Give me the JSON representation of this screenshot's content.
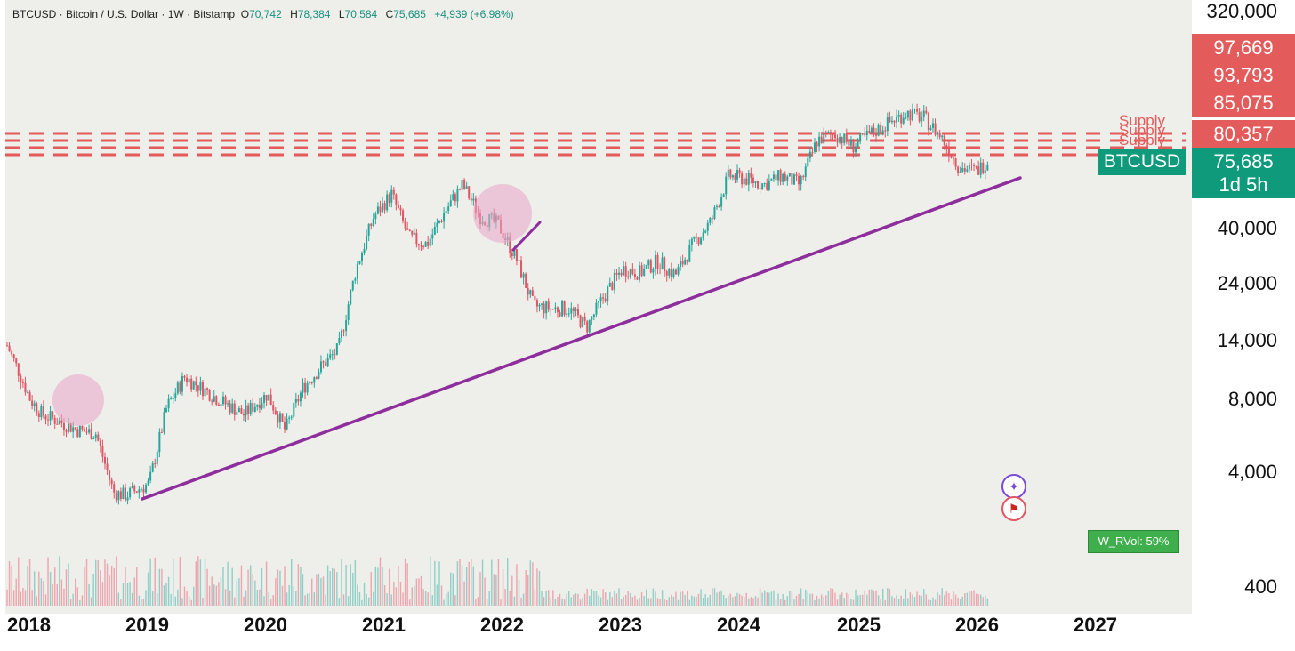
{
  "header": {
    "symbol_line": "BTCUSD · Bitcoin / U.S. Dollar · 1W · Bitstamp",
    "ohlc": [
      {
        "k": "O",
        "v": "70,742"
      },
      {
        "k": "H",
        "v": "78,384"
      },
      {
        "k": "L",
        "v": "70,584"
      },
      {
        "k": "C",
        "v": "75,685"
      }
    ],
    "change": "+4,939 (+6.98%)"
  },
  "price_axis": {
    "labels": [
      "320,000",
      "40,000",
      "24,000",
      "14,000",
      "8,000",
      "4,000",
      "400"
    ]
  },
  "supply_tags": [
    "97,669",
    "93,793",
    "85,075",
    "80,357"
  ],
  "supply_label": "Supply",
  "current": {
    "ticker": "BTCUSD",
    "price": "75,685",
    "countdown": "1d 5h"
  },
  "time_axis": {
    "years": [
      "2018",
      "2019",
      "2020",
      "2021",
      "2022",
      "2023",
      "2024",
      "2025",
      "2026",
      "2027"
    ]
  },
  "indicator": {
    "rvol_label": "W_RVol: 59%"
  },
  "icons": [
    "sparkle-icon",
    "us-flag-icon"
  ],
  "colors": {
    "up": "#26a69a",
    "down": "#e05563",
    "supply": "#e45b5b",
    "trendline": "#8e2d9c",
    "accent_green": "#0f9b7b"
  },
  "chart_data": {
    "type": "candlestick",
    "title": "BTCUSD · Bitcoin / U.S. Dollar · 1W · Bitstamp",
    "y_scale": "log",
    "ylim": [
      2500,
      320000
    ],
    "x_range": [
      "2018",
      "2027"
    ],
    "series": [
      {
        "name": "BTCUSD",
        "x": [
          2018.0,
          2018.1,
          2018.2,
          2018.3,
          2018.45,
          2018.6,
          2018.75,
          2018.9,
          2019.0,
          2019.2,
          2019.35,
          2019.5,
          2019.65,
          2019.8,
          2020.0,
          2020.2,
          2020.35,
          2020.5,
          2020.65,
          2020.8,
          2020.95,
          2021.1,
          2021.25,
          2021.4,
          2021.55,
          2021.7,
          2021.85,
          2022.0,
          2022.15,
          2022.3,
          2022.45,
          2022.6,
          2022.75,
          2022.9,
          2023.05,
          2023.2,
          2023.35,
          2023.5,
          2023.65,
          2023.8,
          2023.95,
          2024.1,
          2024.25,
          2024.4,
          2024.55,
          2024.7,
          2024.85,
          2025.0,
          2025.15,
          2025.3,
          2025.45,
          2025.6,
          2025.75,
          2025.9,
          2026.05,
          2026.2,
          2026.3
        ],
        "y": [
          14000,
          11000,
          8500,
          7500,
          7000,
          6500,
          6300,
          3700,
          3600,
          4000,
          8000,
          10500,
          9500,
          8500,
          7500,
          9000,
          6500,
          9500,
          11500,
          13500,
          28000,
          45000,
          55000,
          37000,
          35000,
          47000,
          60000,
          45000,
          42000,
          31000,
          20000,
          19500,
          19500,
          16500,
          22000,
          28000,
          27000,
          30000,
          26500,
          35000,
          43000,
          65000,
          63000,
          60000,
          65000,
          60000,
          90000,
          95000,
          85000,
          95000,
          105000,
          115000,
          110000,
          92000,
          70000,
          68000,
          75685
        ]
      }
    ],
    "volume": {
      "name": "Volume",
      "shown": true
    },
    "annotations": [
      "Supply",
      "W_RVol: 59%"
    ]
  }
}
